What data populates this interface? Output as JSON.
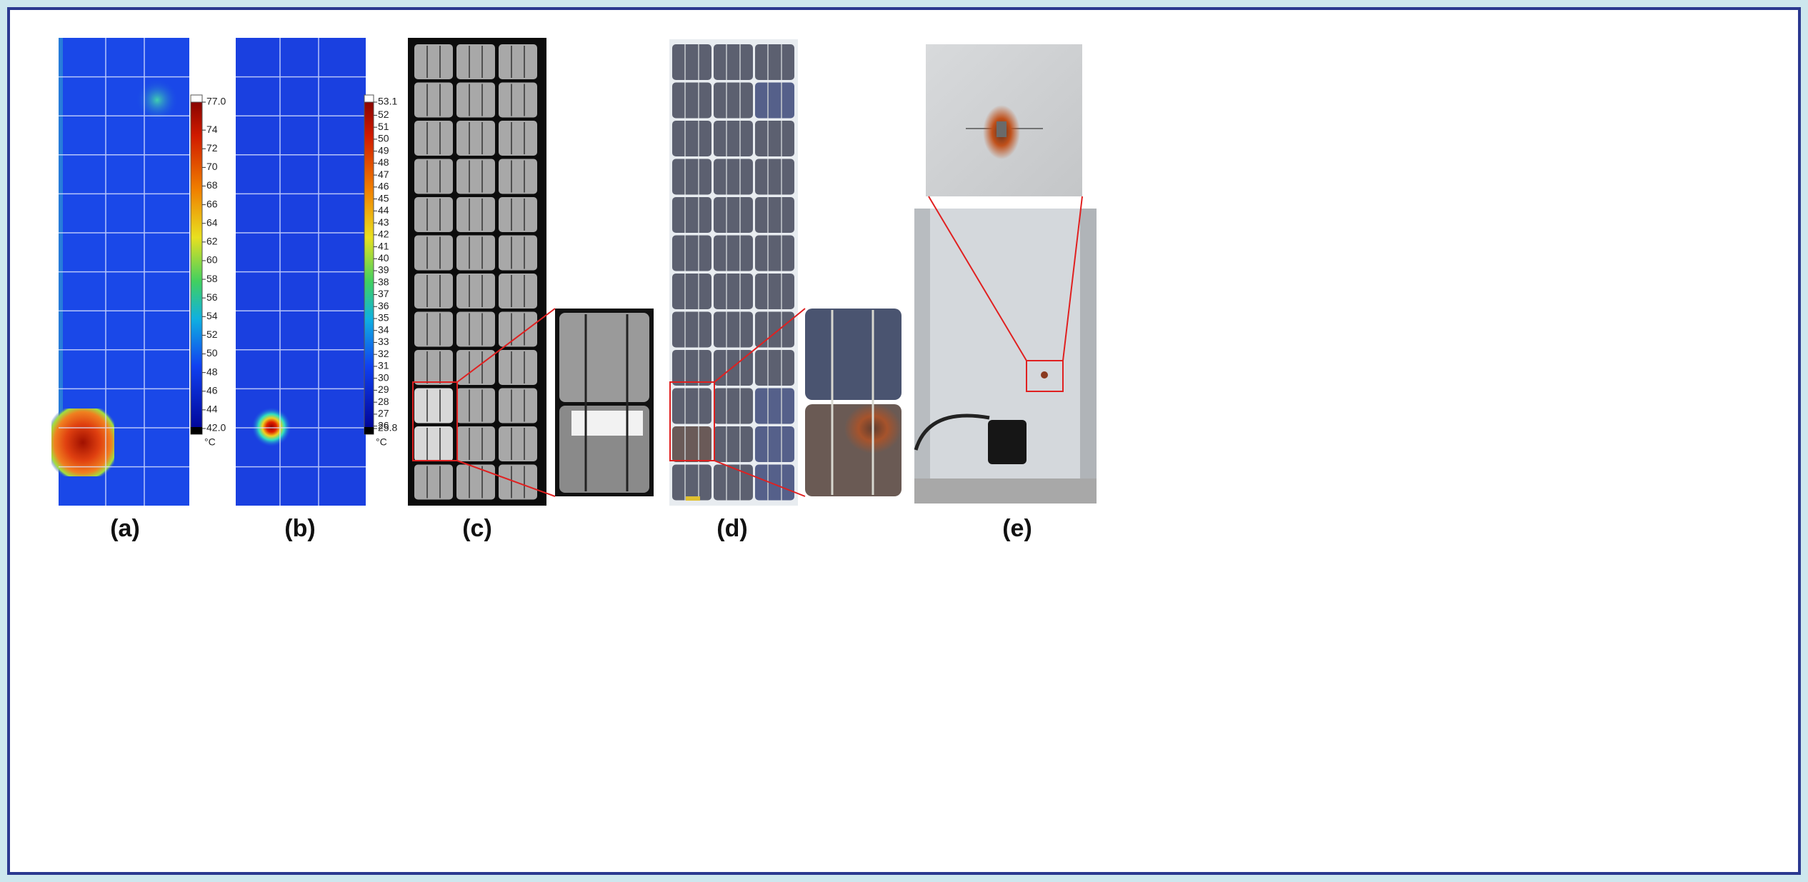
{
  "figure": {
    "panels": [
      {
        "label": "(a)",
        "colorbar": {
          "ticks": [
            "77.0",
            "74",
            "72",
            "70",
            "68",
            "66",
            "64",
            "62",
            "60",
            "58",
            "56",
            "54",
            "52",
            "50",
            "48",
            "46",
            "44",
            "42.0"
          ],
          "unit": "°C"
        }
      },
      {
        "label": "(b)",
        "colorbar": {
          "ticks": [
            "53.1",
            "52",
            "51",
            "50",
            "49",
            "48",
            "47",
            "46",
            "45",
            "44",
            "43",
            "42",
            "41",
            "40",
            "39",
            "38",
            "37",
            "36",
            "35",
            "34",
            "33",
            "32",
            "31",
            "30",
            "29",
            "28",
            "27",
            "26",
            "25.8"
          ],
          "unit": "°C"
        }
      },
      {
        "label": "(c)"
      },
      {
        "label": "(d)"
      },
      {
        "label": "(e)"
      }
    ]
  }
}
